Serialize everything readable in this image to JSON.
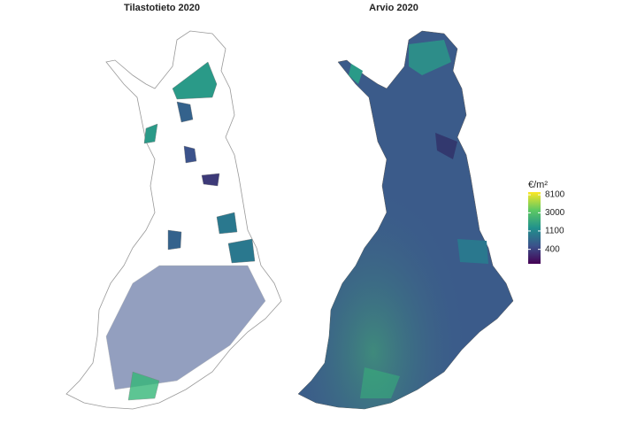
{
  "panels": [
    {
      "title": "Tilastotieto 2020"
    },
    {
      "title": "Arvio 2020"
    }
  ],
  "legend": {
    "title": "€/m²",
    "log": true,
    "lim": [
      180,
      9400
    ],
    "ticks": [
      400,
      1100,
      3000,
      8100
    ],
    "colors": [
      "#440154",
      "#3b528b",
      "#21918c",
      "#5ec962",
      "#fde725"
    ]
  }
}
